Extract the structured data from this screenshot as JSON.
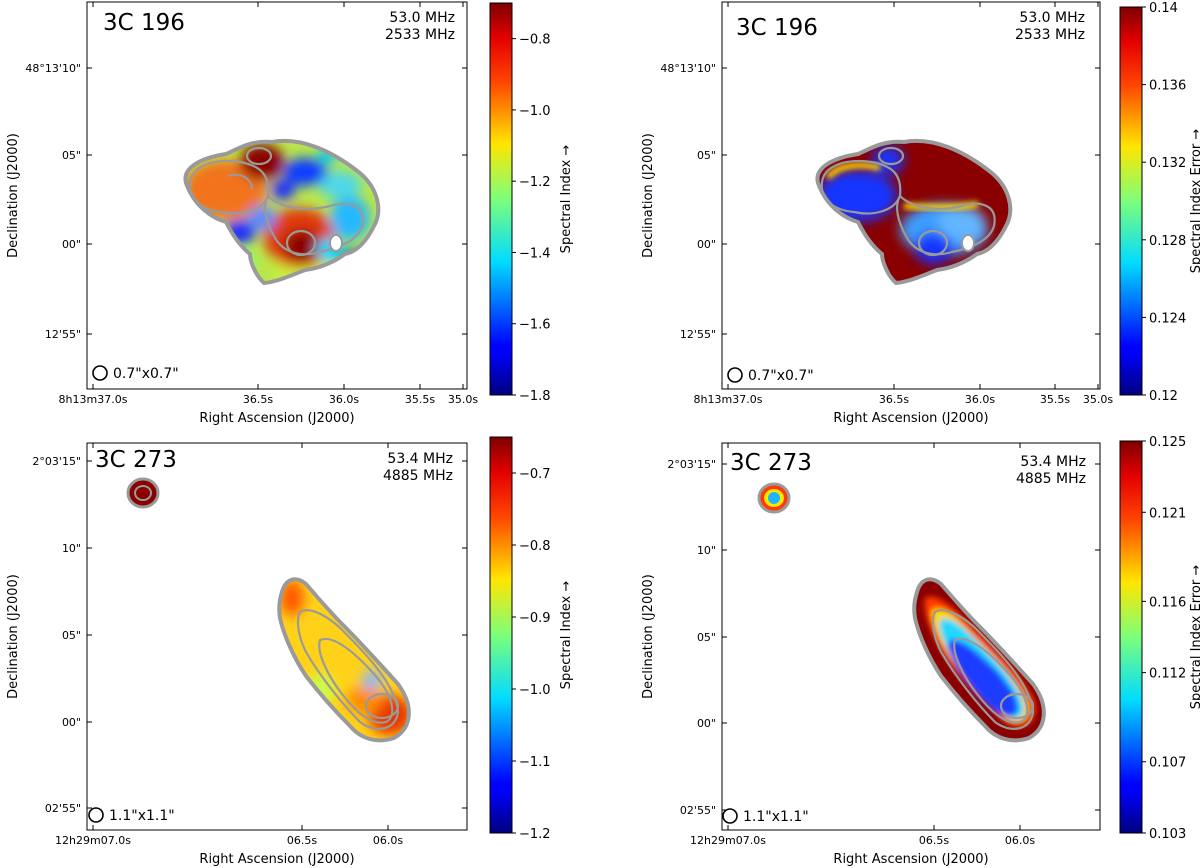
{
  "chart_data": [
    {
      "type": "heatmap",
      "source": "3C 196",
      "freqs": [
        "53.0 MHz",
        "2533 MHz"
      ],
      "beam": "0.7\"x0.7\"",
      "xlabel": "Right Ascension (J2000)",
      "ylabel": "Declination (J2000)",
      "xticks": [
        "8h13m37.0s",
        "36.5s",
        "36.0s",
        "35.5s",
        "35.0s"
      ],
      "yticks": [
        "48°13'10\"",
        "05\"",
        "00\"",
        "12'55\""
      ],
      "colorbar": {
        "label": "Spectral Index →",
        "min": -1.8,
        "max": -0.7,
        "ticks": [
          "−1.8",
          "−1.6",
          "−1.4",
          "−1.2",
          "−1.0",
          "−0.8"
        ],
        "tick_values": [
          -1.8,
          -1.6,
          -1.4,
          -1.2,
          -1.0,
          -0.8
        ]
      },
      "colorscale": "jet"
    },
    {
      "type": "heatmap",
      "source": "3C 196",
      "freqs": [
        "53.0 MHz",
        "2533 MHz"
      ],
      "beam": "0.7\"x0.7\"",
      "xlabel": "Right Ascension (J2000)",
      "ylabel": "Declination (J2000)",
      "xticks": [
        "8h13m37.0s",
        "36.5s",
        "36.0s",
        "35.5s",
        "35.0s"
      ],
      "yticks": [
        "48°13'10\"",
        "05\"",
        "00\"",
        "12'55\""
      ],
      "colorbar": {
        "label": "Spectral Index Error →",
        "min": 0.12,
        "max": 0.14,
        "ticks": [
          "0.12",
          "0.124",
          "0.128",
          "0.132",
          "0.136",
          "0.14"
        ],
        "tick_values": [
          0.12,
          0.124,
          0.128,
          0.132,
          0.136,
          0.14
        ]
      },
      "colorscale": "jet"
    },
    {
      "type": "heatmap",
      "source": "3C 273",
      "freqs": [
        "53.4 MHz",
        "4885 MHz"
      ],
      "beam": "1.1\"x1.1\"",
      "xlabel": "Right Ascension (J2000)",
      "ylabel": "Declination (J2000)",
      "xticks": [
        "12h29m07.0s",
        "06.5s",
        "06.0s"
      ],
      "yticks": [
        "2°03'15\"",
        "10\"",
        "05\"",
        "00\"",
        "02'55\""
      ],
      "colorbar": {
        "label": "Spectral Index →",
        "min": -1.2,
        "max": -0.65,
        "ticks": [
          "−1.2",
          "−1.1",
          "−1.0",
          "−0.9",
          "−0.8",
          "−0.7"
        ],
        "tick_values": [
          -1.2,
          -1.1,
          -1.0,
          -0.9,
          -0.8,
          -0.7
        ]
      },
      "colorscale": "jet"
    },
    {
      "type": "heatmap",
      "source": "3C 273",
      "freqs": [
        "53.4 MHz",
        "4885 MHz"
      ],
      "beam": "1.1\"x1.1\"",
      "xlabel": "Right Ascension (J2000)",
      "ylabel": "Declination (J2000)",
      "xticks": [
        "12h29m07.0s",
        "06.5s",
        "06.0s"
      ],
      "yticks": [
        "2°03'15\"",
        "10\"",
        "05\"",
        "00\"",
        "02'55\""
      ],
      "colorbar": {
        "label": "Spectral Index Error →",
        "min": 0.103,
        "max": 0.125,
        "ticks": [
          "0.103",
          "0.107",
          "0.112",
          "0.116",
          "0.121",
          "0.125"
        ],
        "tick_values": [
          0.103,
          0.107,
          0.112,
          0.116,
          0.121,
          0.125
        ]
      },
      "colorscale": "jet"
    }
  ]
}
